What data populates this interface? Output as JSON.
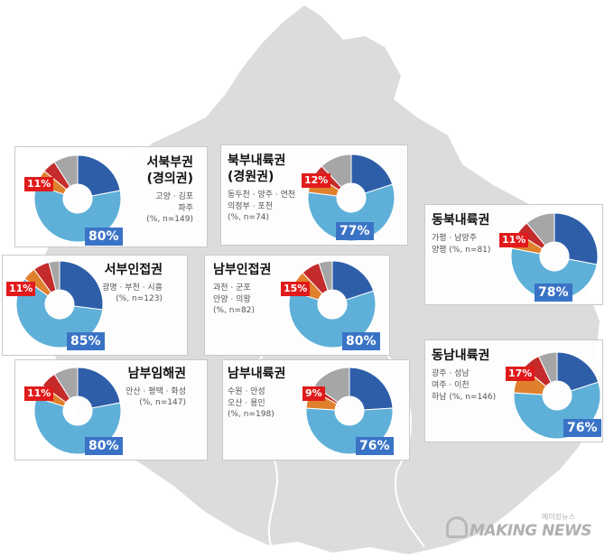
{
  "colors": {
    "dark_blue": "#2e5ea8",
    "light_blue": "#5fb0d8",
    "orange": "#e07f2c",
    "red": "#c42b2b",
    "gray": "#a6a6a6",
    "map": "#dcdcdc",
    "badge_blue": "#3a73c6",
    "badge_red": "#e11b1b"
  },
  "watermark": {
    "text": "MAKING NEWS",
    "korean": "메이킹뉴스",
    "logo_icon": "making-news-logo-icon"
  },
  "chart_data": [
    {
      "type": "pie",
      "title": "서북부권",
      "subtitle": "(경의권)",
      "areas": [
        "고양 · 김포",
        "파주"
      ],
      "sample": "(%, n=149)",
      "values": [
        22,
        58,
        6,
        5,
        9
      ],
      "big_label": "80%",
      "small_label": "11%"
    },
    {
      "type": "pie",
      "title": "북부내륙권",
      "subtitle": "(경원권)",
      "areas": [
        "동두천 · 양주 · 연천",
        "의정부 · 포천"
      ],
      "sample": "(%, n=74)",
      "values": [
        20,
        57,
        7,
        4,
        12
      ],
      "big_label": "77%",
      "small_label": "12%"
    },
    {
      "type": "pie",
      "title": "동북내륙권",
      "subtitle": "",
      "areas": [
        "가평 · 남양주",
        "양평 (%, n=81)"
      ],
      "sample": "",
      "values": [
        28,
        50,
        6,
        5,
        11
      ],
      "big_label": "78%",
      "small_label": "11%"
    },
    {
      "type": "pie",
      "title": "서부인접권",
      "subtitle": "",
      "areas": [
        "광명 · 부천 · 시흥"
      ],
      "sample": "(%, n=123)",
      "values": [
        27,
        58,
        5,
        6,
        4
      ],
      "big_label": "85%",
      "small_label": "11%"
    },
    {
      "type": "pie",
      "title": "남부인접권",
      "subtitle": "",
      "areas": [
        "과천 · 군포",
        "안양 · 의왕"
      ],
      "sample": "(%, n=82)",
      "values": [
        20,
        60,
        8,
        7,
        5
      ],
      "big_label": "80%",
      "small_label": "15%"
    },
    {
      "type": "pie",
      "title": "남부임해권",
      "subtitle": "",
      "areas": [
        "안산 · 평택 · 화성"
      ],
      "sample": "(%, n=147)",
      "values": [
        22,
        58,
        5,
        6,
        9
      ],
      "big_label": "80%",
      "small_label": "11%"
    },
    {
      "type": "pie",
      "title": "남부내륙권",
      "subtitle": "",
      "areas": [
        "수원 · 안성",
        "오산 · 용인"
      ],
      "sample": "(%, n=198)",
      "values": [
        24,
        52,
        7,
        2,
        15
      ],
      "big_label": "76%",
      "small_label": "9%"
    },
    {
      "type": "pie",
      "title": "동남내륙권",
      "subtitle": "",
      "areas": [
        "광주 · 성남",
        "여주 · 이천",
        "하남 (%, n=146)"
      ],
      "sample": "",
      "values": [
        20,
        56,
        10,
        7,
        7
      ],
      "big_label": "76%",
      "small_label": "17%"
    }
  ]
}
